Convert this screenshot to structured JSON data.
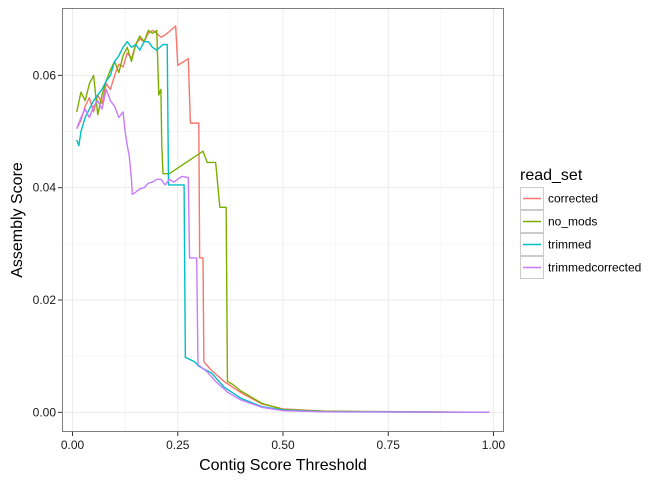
{
  "chart_data": {
    "type": "line",
    "title": "",
    "xlabel": "Contig Score Threshold",
    "ylabel": "Assembly Score",
    "xlim": [
      -0.025,
      1.025
    ],
    "ylim": [
      -0.0035,
      0.072
    ],
    "x_ticks": [
      0.0,
      0.25,
      0.5,
      0.75,
      1.0
    ],
    "x_tick_labels": [
      "0.00",
      "0.25",
      "0.50",
      "0.75",
      "1.00"
    ],
    "y_ticks": [
      0.0,
      0.02,
      0.04,
      0.06
    ],
    "y_tick_labels": [
      "0.00",
      "0.02",
      "0.04",
      "0.06"
    ],
    "grid": true,
    "legend": {
      "title": "read_set",
      "position": "right"
    },
    "series": [
      {
        "name": "corrected",
        "color": "#F8766D",
        "points": [
          [
            0.01,
            0.0505
          ],
          [
            0.02,
            0.052
          ],
          [
            0.03,
            0.0545
          ],
          [
            0.04,
            0.056
          ],
          [
            0.05,
            0.0535
          ],
          [
            0.06,
            0.0565
          ],
          [
            0.07,
            0.055
          ],
          [
            0.08,
            0.0585
          ],
          [
            0.09,
            0.0575
          ],
          [
            0.1,
            0.06
          ],
          [
            0.11,
            0.062
          ],
          [
            0.12,
            0.0615
          ],
          [
            0.13,
            0.064
          ],
          [
            0.14,
            0.063
          ],
          [
            0.15,
            0.0655
          ],
          [
            0.16,
            0.0665
          ],
          [
            0.17,
            0.066
          ],
          [
            0.18,
            0.0675
          ],
          [
            0.19,
            0.068
          ],
          [
            0.2,
            0.0675
          ],
          [
            0.21,
            0.0668
          ],
          [
            0.22,
            0.0672
          ],
          [
            0.23,
            0.0678
          ],
          [
            0.245,
            0.0688
          ],
          [
            0.25,
            0.0618
          ],
          [
            0.265,
            0.0625
          ],
          [
            0.275,
            0.063
          ],
          [
            0.28,
            0.0515
          ],
          [
            0.3,
            0.0515
          ],
          [
            0.302,
            0.0275
          ],
          [
            0.31,
            0.0275
          ],
          [
            0.312,
            0.009
          ],
          [
            0.33,
            0.0075
          ],
          [
            0.36,
            0.0055
          ],
          [
            0.4,
            0.0035
          ],
          [
            0.45,
            0.0015
          ],
          [
            0.5,
            0.0006
          ],
          [
            0.6,
            0.0002
          ],
          [
            0.7,
            0.0001
          ],
          [
            0.99,
            0.0
          ]
        ]
      },
      {
        "name": "no_mods",
        "color": "#7CAE00",
        "points": [
          [
            0.01,
            0.0535
          ],
          [
            0.02,
            0.057
          ],
          [
            0.03,
            0.0555
          ],
          [
            0.04,
            0.0585
          ],
          [
            0.05,
            0.06
          ],
          [
            0.06,
            0.053
          ],
          [
            0.07,
            0.0565
          ],
          [
            0.08,
            0.059
          ],
          [
            0.09,
            0.061
          ],
          [
            0.1,
            0.0625
          ],
          [
            0.11,
            0.0605
          ],
          [
            0.12,
            0.0635
          ],
          [
            0.13,
            0.065
          ],
          [
            0.14,
            0.0625
          ],
          [
            0.15,
            0.0655
          ],
          [
            0.16,
            0.067
          ],
          [
            0.17,
            0.066
          ],
          [
            0.18,
            0.068
          ],
          [
            0.19,
            0.0675
          ],
          [
            0.2,
            0.068
          ],
          [
            0.205,
            0.0565
          ],
          [
            0.21,
            0.0575
          ],
          [
            0.212,
            0.0475
          ],
          [
            0.215,
            0.0425
          ],
          [
            0.23,
            0.0425
          ],
          [
            0.25,
            0.0435
          ],
          [
            0.27,
            0.0445
          ],
          [
            0.29,
            0.0455
          ],
          [
            0.31,
            0.0465
          ],
          [
            0.32,
            0.0445
          ],
          [
            0.34,
            0.0445
          ],
          [
            0.35,
            0.0365
          ],
          [
            0.365,
            0.0365
          ],
          [
            0.368,
            0.0055
          ],
          [
            0.38,
            0.005
          ],
          [
            0.4,
            0.0038
          ],
          [
            0.45,
            0.0016
          ],
          [
            0.5,
            0.0005
          ],
          [
            0.6,
            0.0002
          ],
          [
            0.99,
            0.0
          ]
        ]
      },
      {
        "name": "trimmed",
        "color": "#00BFC4",
        "points": [
          [
            0.01,
            0.0485
          ],
          [
            0.015,
            0.0475
          ],
          [
            0.02,
            0.05
          ],
          [
            0.03,
            0.0525
          ],
          [
            0.04,
            0.054
          ],
          [
            0.05,
            0.0555
          ],
          [
            0.06,
            0.0565
          ],
          [
            0.07,
            0.0575
          ],
          [
            0.08,
            0.059
          ],
          [
            0.09,
            0.06
          ],
          [
            0.1,
            0.0625
          ],
          [
            0.11,
            0.0635
          ],
          [
            0.12,
            0.065
          ],
          [
            0.13,
            0.066
          ],
          [
            0.14,
            0.065
          ],
          [
            0.15,
            0.0655
          ],
          [
            0.16,
            0.0645
          ],
          [
            0.17,
            0.066
          ],
          [
            0.18,
            0.066
          ],
          [
            0.19,
            0.065
          ],
          [
            0.2,
            0.0645
          ],
          [
            0.215,
            0.0655
          ],
          [
            0.225,
            0.0655
          ],
          [
            0.228,
            0.0405
          ],
          [
            0.25,
            0.0405
          ],
          [
            0.265,
            0.0405
          ],
          [
            0.268,
            0.0098
          ],
          [
            0.29,
            0.009
          ],
          [
            0.3,
            0.0082
          ],
          [
            0.33,
            0.007
          ],
          [
            0.36,
            0.0045
          ],
          [
            0.4,
            0.0025
          ],
          [
            0.45,
            0.001
          ],
          [
            0.5,
            0.0004
          ],
          [
            0.6,
            0.0001
          ],
          [
            0.99,
            0.0
          ]
        ]
      },
      {
        "name": "trimmedcorrected",
        "color": "#C77CFF",
        "points": [
          [
            0.01,
            0.0505
          ],
          [
            0.02,
            0.0525
          ],
          [
            0.03,
            0.054
          ],
          [
            0.04,
            0.0525
          ],
          [
            0.05,
            0.0545
          ],
          [
            0.06,
            0.0555
          ],
          [
            0.07,
            0.054
          ],
          [
            0.08,
            0.0575
          ],
          [
            0.09,
            0.0555
          ],
          [
            0.1,
            0.0545
          ],
          [
            0.11,
            0.0525
          ],
          [
            0.12,
            0.0535
          ],
          [
            0.125,
            0.05
          ],
          [
            0.13,
            0.0475
          ],
          [
            0.135,
            0.0455
          ],
          [
            0.14,
            0.0415
          ],
          [
            0.142,
            0.0388
          ],
          [
            0.15,
            0.0392
          ],
          [
            0.16,
            0.0398
          ],
          [
            0.17,
            0.04
          ],
          [
            0.18,
            0.0408
          ],
          [
            0.19,
            0.041
          ],
          [
            0.2,
            0.0415
          ],
          [
            0.21,
            0.0415
          ],
          [
            0.22,
            0.0405
          ],
          [
            0.23,
            0.0415
          ],
          [
            0.24,
            0.041
          ],
          [
            0.25,
            0.0415
          ],
          [
            0.26,
            0.042
          ],
          [
            0.275,
            0.0418
          ],
          [
            0.278,
            0.0275
          ],
          [
            0.295,
            0.0275
          ],
          [
            0.298,
            0.0085
          ],
          [
            0.32,
            0.0072
          ],
          [
            0.34,
            0.0055
          ],
          [
            0.37,
            0.0035
          ],
          [
            0.4,
            0.0022
          ],
          [
            0.45,
            0.0009
          ],
          [
            0.5,
            0.0003
          ],
          [
            0.6,
            0.0001
          ],
          [
            0.99,
            0.0
          ]
        ]
      }
    ]
  }
}
